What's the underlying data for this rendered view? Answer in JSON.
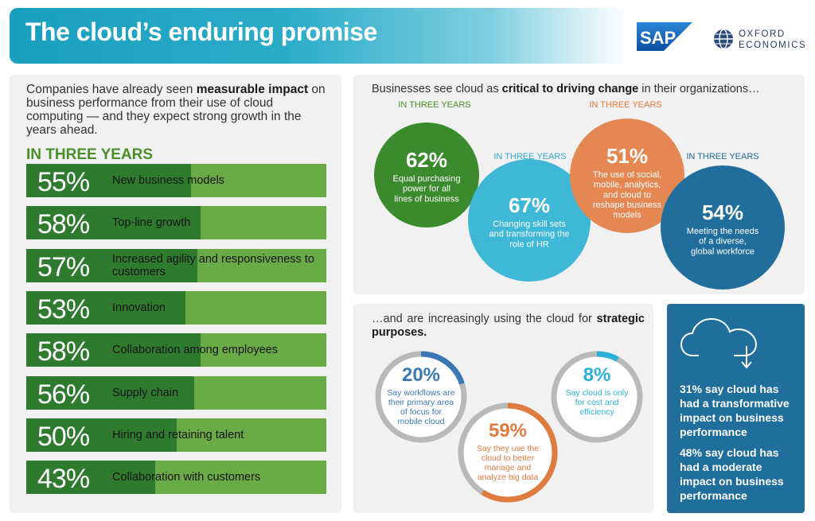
{
  "header": {
    "title": "The cloud’s enduring promise",
    "sap_logo": "SAP",
    "oxford_line1": "OXFORD",
    "oxford_line2": "ECONOMICS"
  },
  "left_panel": {
    "intro_prefix": "Companies have already seen ",
    "intro_bold": "measurable impact",
    "intro_suffix": " on business performance from their use of cloud computing — and they expect strong growth in the years ahead.",
    "heading": "IN THREE YEARS"
  },
  "top_right": {
    "intro_prefix": "Businesses see cloud as ",
    "intro_bold": "critical to driving change",
    "intro_suffix": " in their organizations…",
    "circles": [
      {
        "period": "IN THREE YEARS",
        "value": "62%",
        "text": "Equal purchasing power for all lines of business",
        "color": "#3b8a2e",
        "period_color": "#4a8f2a"
      },
      {
        "period": "IN THREE YEARS",
        "value": "67%",
        "text": "Changing skill sets and transforming the role of HR",
        "color": "#3fb8d8",
        "period_color": "#2fa8cc"
      },
      {
        "period": "IN THREE YEARS",
        "value": "51%",
        "text": "The use of social, mobile, analytics, and cloud to reshape business models",
        "color": "#e58752",
        "period_color": "#e07b3f"
      },
      {
        "period": "IN THREE YEARS",
        "value": "54%",
        "text": "Meeting the needs of a diverse, global workforce",
        "color": "#216e9c",
        "period_color": "#216e9c"
      }
    ]
  },
  "bottom_mid": {
    "intro_prefix": "…and are increasingly using the cloud for ",
    "intro_bold": "strategic purposes.",
    "rings": [
      {
        "value": "20%",
        "text": "Say workflows are their primary area of focus for mobile cloud",
        "fraction": 0.2,
        "color": "#3a78b5"
      },
      {
        "value": "8%",
        "text": "Say cloud is only for cost and efficiency",
        "fraction": 0.08,
        "color": "#2ab0d4"
      },
      {
        "value": "59%",
        "text": "Say they use the cloud to better manage and analyze big data",
        "fraction": 0.59,
        "color": "#e07b3f"
      }
    ]
  },
  "blue_panel": {
    "icon": "cloud-download-icon",
    "stat1": "31% say cloud has had a transformative impact on business performance",
    "stat2": "48% say cloud has had a moderate impact on business performance"
  },
  "chart_data": [
    {
      "type": "bar",
      "title": "IN THREE YEARS",
      "categories": [
        "New business models",
        "Top-line growth",
        "Increased agility and responsiveness to customers",
        "Innovation",
        "Collaboration among employees",
        "Supply chain",
        "Hiring and retaining talent",
        "Collaboration with customers"
      ],
      "values": [
        55,
        58,
        57,
        53,
        58,
        56,
        50,
        43
      ],
      "labels": [
        "55%",
        "58%",
        "57%",
        "53%",
        "58%",
        "56%",
        "50%",
        "43%"
      ],
      "xlim": [
        0,
        100
      ],
      "colors": {
        "filled": "#2e7a2e",
        "remainder": "#6aaa47"
      }
    }
  ]
}
